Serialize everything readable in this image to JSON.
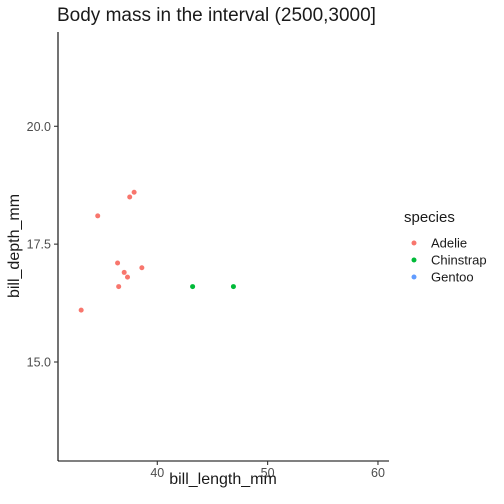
{
  "chart_data": {
    "type": "scatter",
    "title": "Body mass in the interval (2500,3000]",
    "xlabel": "bill_length_mm",
    "ylabel": "bill_depth_mm",
    "xlim": [
      31.0,
      61.0
    ],
    "ylim": [
      12.9,
      22.0
    ],
    "x_ticks": [
      40,
      50,
      60
    ],
    "y_ticks": [
      15.0,
      17.5,
      20.0
    ],
    "x_tick_labels": [
      "40",
      "50",
      "60"
    ],
    "y_tick_labels": [
      "15.0",
      "17.5",
      "20.0"
    ],
    "grid": false,
    "legend_position": "right",
    "legend_title": "species",
    "series": [
      {
        "name": "Adelie",
        "color": "#F8766D",
        "points": [
          {
            "x": 37.5,
            "y": 18.5
          },
          {
            "x": 37.9,
            "y": 18.6
          },
          {
            "x": 34.6,
            "y": 18.1
          },
          {
            "x": 36.4,
            "y": 17.1
          },
          {
            "x": 38.6,
            "y": 17.0
          },
          {
            "x": 37.0,
            "y": 16.9
          },
          {
            "x": 37.3,
            "y": 16.8
          },
          {
            "x": 36.5,
            "y": 16.6
          },
          {
            "x": 33.1,
            "y": 16.1
          }
        ]
      },
      {
        "name": "Chinstrap",
        "color": "#00BA38",
        "points": [
          {
            "x": 43.2,
            "y": 16.6
          },
          {
            "x": 46.9,
            "y": 16.6
          }
        ]
      },
      {
        "name": "Gentoo",
        "color": "#619CFF",
        "points": []
      }
    ]
  }
}
